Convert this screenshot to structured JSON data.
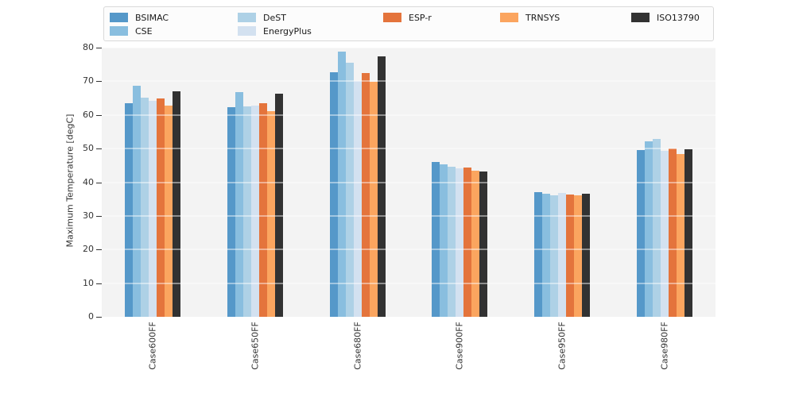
{
  "figure": {
    "kind": "grouped bar chart",
    "title": ""
  },
  "appearance": {
    "figure_background": "#ffffff",
    "plot_background": "#f3f3f3",
    "gridline_color": "rgba(255,255,255,0.45)",
    "text_color": "#333333",
    "legend_background": "#fcfcfc",
    "legend_border": "#d9d9d9"
  },
  "chart_data": {
    "type": "bar",
    "title": "",
    "xlabel": "",
    "ylabel": "Maximum Temperature [degC]",
    "ylim": [
      0,
      80
    ],
    "yticks": [
      0,
      10,
      20,
      30,
      40,
      50,
      60,
      70,
      80
    ],
    "grid": "horizontal white gridlines every 10 degC, drawn over bars",
    "legend_position": "top outside plot, 5 columns x 2 rows",
    "legend_order_columns": [
      [
        "BSIMAC",
        "CSE"
      ],
      [
        "DeST",
        "EnergyPlus"
      ],
      [
        "ESP-r"
      ],
      [
        "TRNSYS"
      ],
      [
        "ISO13790"
      ]
    ],
    "categories": [
      "Case600FF",
      "Case650FF",
      "Case680FF",
      "Case900FF",
      "Case950FF",
      "Case980FF"
    ],
    "series": [
      {
        "name": "BSIMAC",
        "color": "#5598c9",
        "values": [
          63.5,
          62.2,
          72.7,
          46.0,
          37.0,
          49.6
        ]
      },
      {
        "name": "CSE",
        "color": "#89bedf",
        "values": [
          68.7,
          66.9,
          78.8,
          45.2,
          36.5,
          52.2
        ]
      },
      {
        "name": "DeST",
        "color": "#aed1e6",
        "values": [
          65.2,
          62.5,
          75.5,
          44.5,
          36.2,
          52.9
        ]
      },
      {
        "name": "EnergyPlus",
        "color": "#d3e1f0",
        "values": [
          64.1,
          62.7,
          70.1,
          44.2,
          36.7,
          49.4
        ]
      },
      {
        "name": "ESP-r",
        "color": "#e4743c",
        "values": [
          64.9,
          63.4,
          72.5,
          44.3,
          36.3,
          50.1
        ]
      },
      {
        "name": "TRNSYS",
        "color": "#fba55f",
        "values": [
          62.7,
          61.2,
          69.9,
          43.5,
          36.0,
          48.4
        ]
      },
      {
        "name": "ISO13790",
        "color": "#323232",
        "values": [
          67.1,
          66.2,
          77.5,
          43.3,
          36.6,
          49.9
        ]
      }
    ]
  }
}
